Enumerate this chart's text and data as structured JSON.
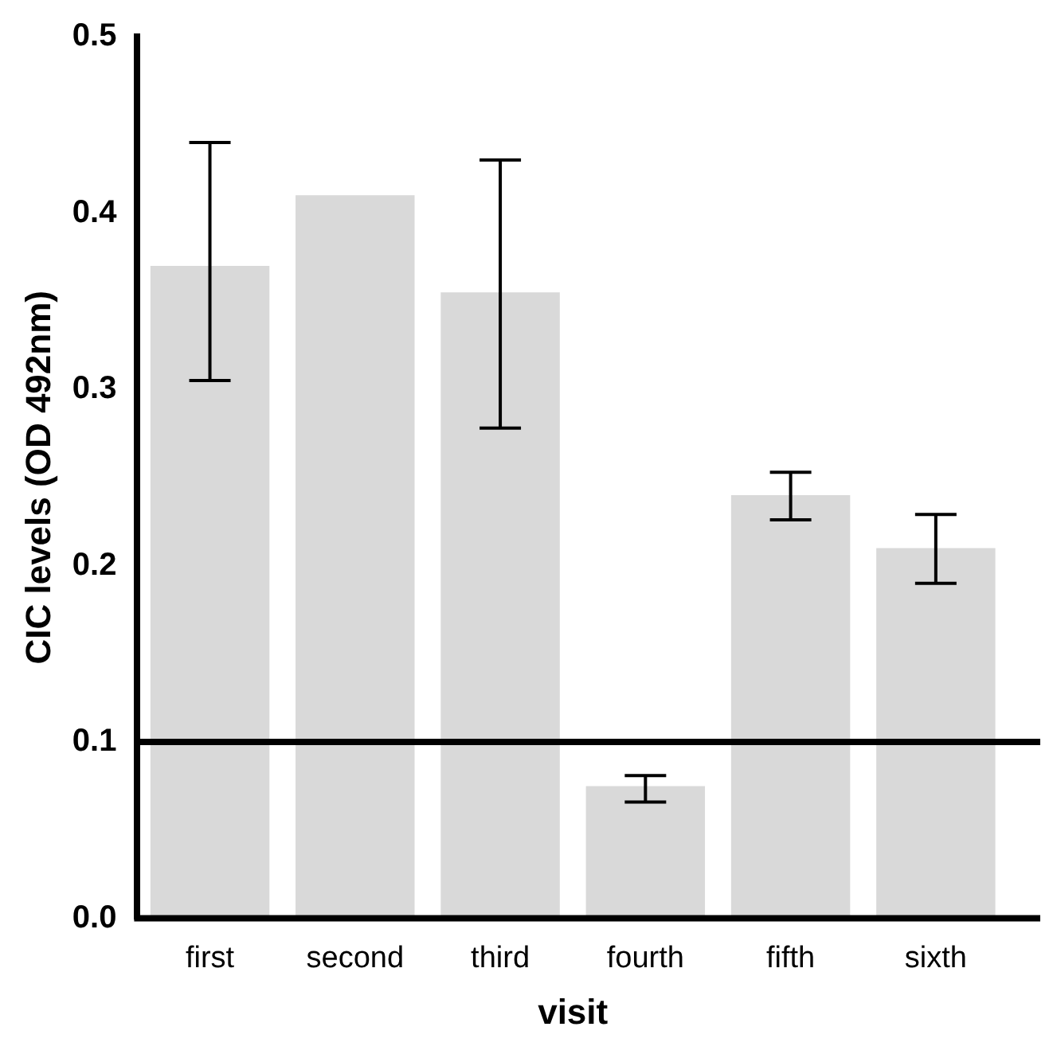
{
  "chart_data": {
    "type": "bar",
    "xlabel": "visit",
    "ylabel": "CIC levels (OD 492nm)",
    "categories": [
      "first",
      "second",
      "third",
      "fourth",
      "fifth",
      "sixth"
    ],
    "values": [
      0.37,
      0.41,
      0.355,
      0.075,
      0.24,
      0.21
    ],
    "errors": [
      [
        0.305,
        0.44
      ],
      null,
      [
        0.278,
        0.43
      ],
      [
        0.066,
        0.081
      ],
      [
        0.226,
        0.253
      ],
      [
        0.19,
        0.229
      ]
    ],
    "color": "#d9d9d9",
    "ylim": [
      0,
      0.5
    ],
    "yticks": [
      {
        "value": 0,
        "label": "0.0"
      },
      {
        "value": 0.1,
        "label": "0.1"
      },
      {
        "value": 0.2,
        "label": "0.2"
      },
      {
        "value": 0.3,
        "label": "0.3"
      },
      {
        "value": 0.4,
        "label": "0.4"
      },
      {
        "value": 0.5,
        "label": "0.5"
      }
    ],
    "ref_lines": [
      {
        "axis": "y",
        "value": 0.1,
        "color": "#000000"
      }
    ],
    "grid": false,
    "legend": false
  }
}
